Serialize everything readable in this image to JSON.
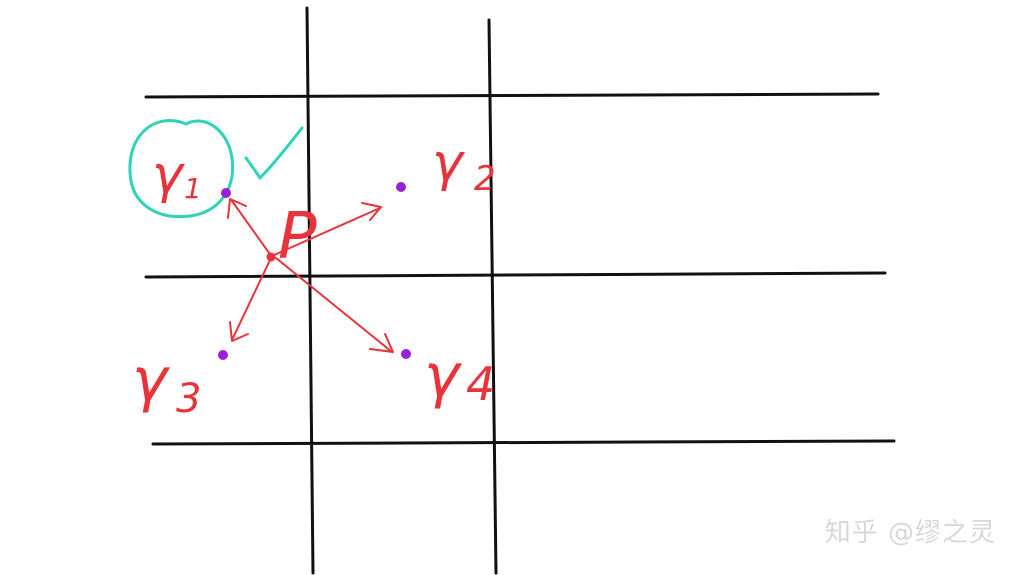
{
  "diagram": {
    "point_label": "P",
    "neighbors": [
      {
        "label": "γ",
        "subscript": "1",
        "selected": true
      },
      {
        "label": "γ",
        "subscript": "2",
        "selected": false
      },
      {
        "label": "γ",
        "subscript": "3",
        "selected": false
      },
      {
        "label": "γ",
        "subscript": "4",
        "selected": false
      }
    ],
    "check_mark": "✓"
  },
  "watermark": "知乎 @缪之灵",
  "colors": {
    "grid": "#111111",
    "annotation": "#e8333a",
    "sample_dot": "#9b1fd6",
    "highlight": "#2ed3b8",
    "background": "#ffffff"
  }
}
